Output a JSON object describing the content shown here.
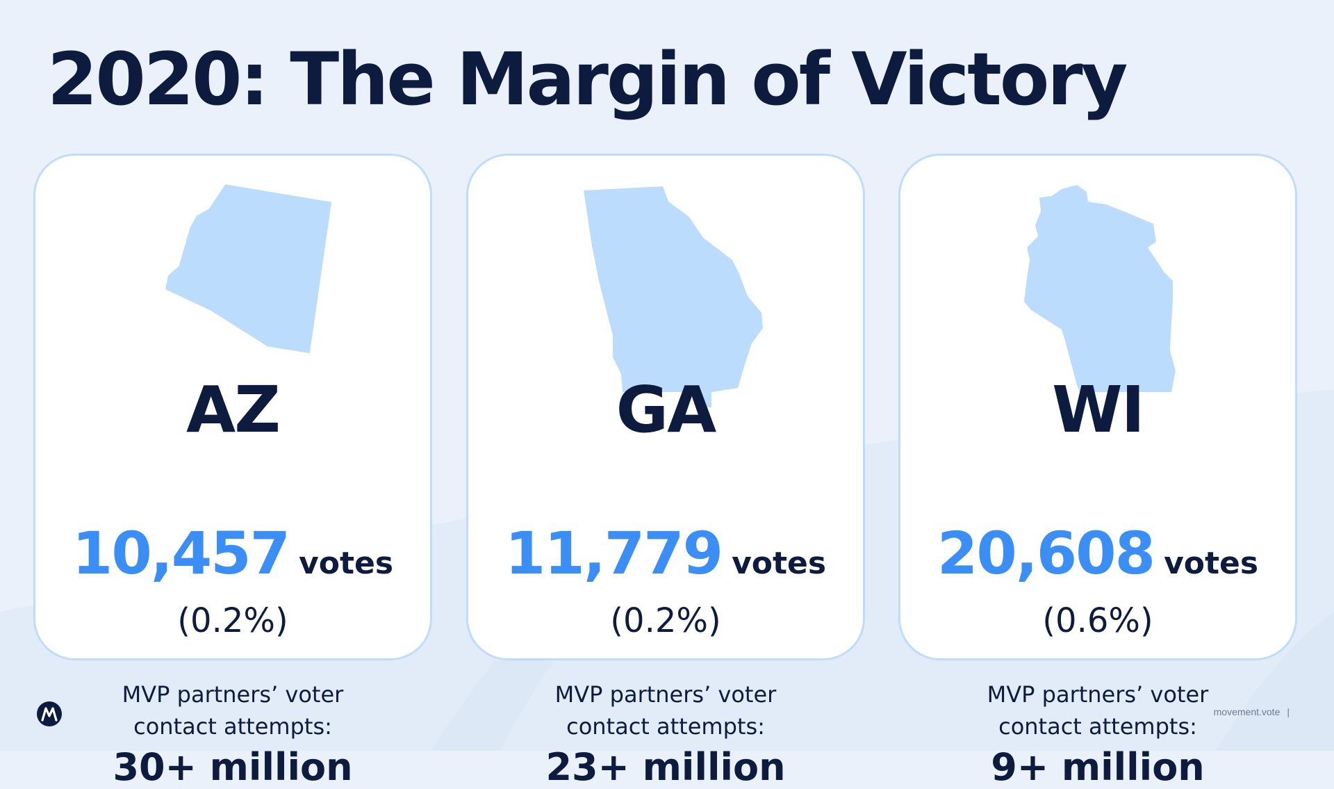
{
  "title": "2020: The Margin of Victory",
  "colors": {
    "accent": "#3b8ef5",
    "navy": "#0d1b3e",
    "map_fill": "#bcdcfd",
    "card_border": "#bfdcfb",
    "background": "#eaf1fa"
  },
  "cards": [
    {
      "state": "AZ",
      "votes": "10,457",
      "votes_label": "votes",
      "percent": "(0.2%)",
      "caption_line1": "MVP partners’ voter",
      "caption_line2": "contact attempts:",
      "contact_attempts": "30+ million",
      "icon": "arizona-map-icon"
    },
    {
      "state": "GA",
      "votes": "11,779",
      "votes_label": "votes",
      "percent": "(0.2%)",
      "caption_line1": "MVP partners’ voter",
      "caption_line2": "contact attempts:",
      "contact_attempts": "23+ million",
      "icon": "georgia-map-icon"
    },
    {
      "state": "WI",
      "votes": "20,608",
      "votes_label": "votes",
      "percent": "(0.6%)",
      "caption_line1": "MVP partners’ voter",
      "caption_line2": "contact attempts:",
      "contact_attempts": "9+ million",
      "icon": "wisconsin-map-icon"
    }
  ],
  "footer": {
    "site": "movement.vote",
    "separator": "|"
  },
  "logo_icon": "movement-logo-icon"
}
